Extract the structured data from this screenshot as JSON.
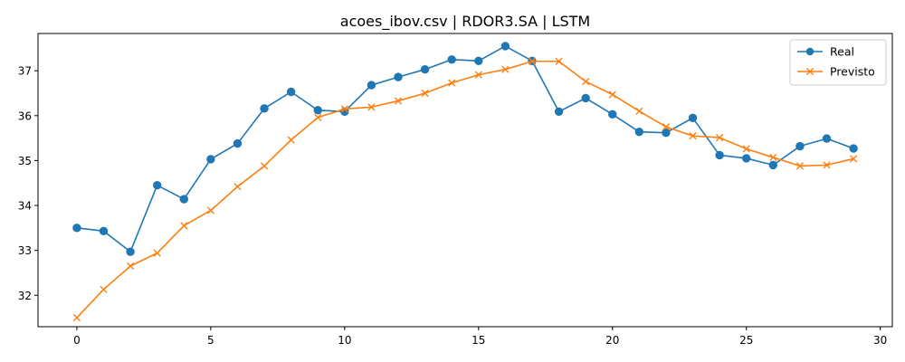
{
  "chart_data": {
    "type": "line",
    "title": "acoes_ibov.csv | RDOR3.SA | LSTM",
    "xlabel": "",
    "ylabel": "",
    "xlim": [
      -1.45,
      30.45
    ],
    "ylim": [
      31.3,
      37.83
    ],
    "xticks": [
      0,
      5,
      10,
      15,
      20,
      25,
      30
    ],
    "yticks": [
      32,
      33,
      34,
      35,
      36,
      37
    ],
    "grid": false,
    "legend_position": "top-right",
    "x": [
      0,
      1,
      2,
      3,
      4,
      5,
      6,
      7,
      8,
      9,
      10,
      11,
      12,
      13,
      14,
      15,
      16,
      17,
      18,
      19,
      20,
      21,
      22,
      23,
      24,
      25,
      26,
      27,
      28,
      29
    ],
    "series": [
      {
        "name": "Real",
        "color": "#1f77b4",
        "marker": "circle",
        "values": [
          33.5,
          33.43,
          32.97,
          34.45,
          34.14,
          35.03,
          35.38,
          36.16,
          36.53,
          36.12,
          36.09,
          36.68,
          36.86,
          37.03,
          37.25,
          37.22,
          37.55,
          37.22,
          36.09,
          36.39,
          36.03,
          35.64,
          35.62,
          35.95,
          35.12,
          35.05,
          34.9,
          35.32,
          35.49,
          35.27
        ]
      },
      {
        "name": "Previsto",
        "color": "#ff7f0e",
        "marker": "x",
        "values": [
          31.5,
          32.13,
          32.65,
          32.94,
          33.55,
          33.89,
          34.42,
          34.88,
          35.46,
          35.96,
          36.15,
          36.19,
          36.33,
          36.5,
          36.73,
          36.91,
          37.03,
          37.21,
          37.21,
          36.76,
          36.47,
          36.1,
          35.75,
          35.55,
          35.51,
          35.26,
          35.07,
          34.88,
          34.9,
          35.04
        ]
      }
    ]
  }
}
